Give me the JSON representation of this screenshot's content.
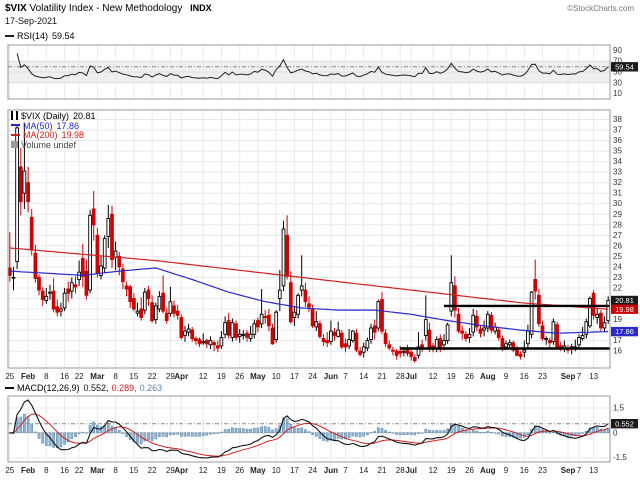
{
  "header": {
    "symbol": "$VIX",
    "title": "Volatility Index - New Methodology",
    "exchange": "INDX",
    "date": "17-Sep-2021",
    "copyright": "©StockCharts.com"
  },
  "rsi_panel": {
    "label": "RSI(14)",
    "value": "59.54",
    "value_num": 59.54,
    "ticks": [
      90,
      70,
      50,
      30,
      10
    ],
    "band": [
      30,
      70
    ],
    "range": [
      0,
      100
    ]
  },
  "main_panel": {
    "legend_symbol": "$VIX (Daily)",
    "last_value": "20.81",
    "ma50_label": "MA(50)",
    "ma50_value": "17.86",
    "ma200_label": "MA(200)",
    "ma200_value": "19.98",
    "volume_label": "Volume undef",
    "price_ticks": [
      16,
      17,
      18,
      19,
      20,
      21,
      22,
      23,
      24,
      25,
      26,
      27,
      28,
      29,
      30,
      31,
      32,
      33,
      34,
      35,
      36,
      37,
      38
    ],
    "badges": [
      {
        "text": "20.81",
        "value": 20.81,
        "color": "#1a1a1a"
      },
      {
        "text": "19.98",
        "value": 19.98,
        "color": "#cc0000"
      },
      {
        "text": "17.86",
        "value": 17.86,
        "color": "#2929cc"
      }
    ]
  },
  "macd_panel": {
    "label": "MACD(12,26,9)",
    "values": [
      "0.552,",
      "0.289,",
      "0.263"
    ],
    "value_num": 0.552,
    "ticks": [
      1.5,
      0,
      -1.5
    ]
  },
  "colors": {
    "up": "#000000",
    "down": "#cc0000",
    "ma50": "#2929cc",
    "ma200": "#cc2222",
    "rsi_line": "#222222",
    "macd_line": "#111111",
    "macd_signal": "#cc2222",
    "macd_hist_fill": "#8fb4d2",
    "macd_hist_stroke": "#5b86a8",
    "grid": "#e9e9e9",
    "panel_border": "#999999",
    "band": "#efefef",
    "dash": "#888888",
    "axis_text": "#333333"
  },
  "chart_data": {
    "type": "candlestick",
    "title": "$VIX Volatility Index - New Methodology (Daily)",
    "date_of_data": "17-Sep-2021",
    "y_range": [
      14.4,
      38.9
    ],
    "x_ticks": [
      [
        0,
        "25"
      ],
      [
        5,
        "Feb"
      ],
      [
        10,
        "8"
      ],
      [
        15,
        "16"
      ],
      [
        19,
        "22"
      ],
      [
        24,
        "Mar"
      ],
      [
        29,
        "8"
      ],
      [
        34,
        "15"
      ],
      [
        39,
        "22"
      ],
      [
        44,
        "29"
      ],
      [
        47,
        "Apr"
      ],
      [
        53,
        "12"
      ],
      [
        58,
        "19"
      ],
      [
        63,
        "26"
      ],
      [
        68,
        "May"
      ],
      [
        73,
        "10"
      ],
      [
        78,
        "17"
      ],
      [
        83,
        "24"
      ],
      [
        88,
        "Jun"
      ],
      [
        92,
        "7"
      ],
      [
        97,
        "14"
      ],
      [
        102,
        "21"
      ],
      [
        107,
        "28"
      ],
      [
        110,
        "Jul"
      ],
      [
        116,
        "12"
      ],
      [
        121,
        "19"
      ],
      [
        126,
        "26"
      ],
      [
        131,
        "Aug"
      ],
      [
        136,
        "9"
      ],
      [
        141,
        "16"
      ],
      [
        146,
        "23"
      ],
      [
        153,
        "Sep"
      ],
      [
        156,
        "7"
      ],
      [
        160,
        "13"
      ]
    ],
    "ohlc": [
      [
        23.9,
        27.3,
        22.6,
        23.2
      ],
      [
        23.0,
        24.0,
        21.8,
        23.0
      ],
      [
        24.5,
        37.5,
        23.8,
        37.2
      ],
      [
        33.5,
        35.3,
        28.9,
        30.2
      ],
      [
        31.0,
        37.6,
        29.5,
        33.1
      ],
      [
        32.0,
        33.5,
        29.2,
        30.2
      ],
      [
        28.7,
        29.5,
        25.1,
        25.6
      ],
      [
        25.3,
        26.1,
        22.5,
        22.9
      ],
      [
        23.0,
        23.3,
        21.3,
        21.8
      ],
      [
        21.7,
        22.1,
        20.3,
        20.9
      ],
      [
        20.8,
        22.0,
        20.5,
        21.2
      ],
      [
        21.5,
        22.3,
        20.9,
        21.6
      ],
      [
        21.7,
        22.9,
        19.7,
        20.0
      ],
      [
        20.2,
        20.9,
        19.3,
        19.7
      ],
      [
        19.8,
        20.6,
        19.3,
        20.0
      ],
      [
        20.1,
        22.0,
        19.8,
        21.5
      ],
      [
        21.9,
        22.6,
        20.7,
        21.5
      ],
      [
        21.7,
        23.0,
        21.0,
        22.5
      ],
      [
        22.3,
        23.1,
        21.5,
        22.1
      ],
      [
        22.8,
        24.6,
        22.2,
        23.5
      ],
      [
        24.8,
        26.2,
        22.1,
        23.1
      ],
      [
        23.6,
        24.7,
        20.9,
        21.3
      ],
      [
        21.8,
        29.4,
        21.5,
        28.9
      ],
      [
        29.5,
        31.2,
        26.5,
        28.0
      ],
      [
        27.0,
        27.7,
        23.0,
        23.4
      ],
      [
        23.2,
        25.0,
        22.8,
        24.1
      ],
      [
        23.9,
        27.0,
        23.4,
        26.7
      ],
      [
        26.9,
        29.9,
        25.8,
        28.6
      ],
      [
        29.0,
        29.8,
        23.9,
        24.7
      ],
      [
        24.9,
        26.4,
        23.7,
        25.5
      ],
      [
        25.0,
        25.4,
        23.2,
        24.0
      ],
      [
        23.8,
        24.3,
        21.9,
        22.6
      ],
      [
        22.2,
        22.6,
        21.2,
        21.9
      ],
      [
        22.1,
        22.3,
        20.1,
        20.7
      ],
      [
        21.0,
        21.5,
        19.8,
        20.0
      ],
      [
        19.6,
        20.6,
        19.3,
        19.8
      ],
      [
        20.0,
        21.1,
        18.9,
        19.2
      ],
      [
        19.9,
        22.0,
        19.5,
        21.6
      ],
      [
        21.8,
        22.2,
        20.3,
        21.0
      ],
      [
        20.6,
        21.3,
        18.7,
        18.9
      ],
      [
        19.0,
        20.6,
        18.6,
        20.3
      ],
      [
        20.0,
        21.7,
        19.7,
        21.2
      ],
      [
        21.5,
        23.2,
        19.6,
        19.8
      ],
      [
        19.6,
        20.1,
        18.6,
        18.9
      ],
      [
        19.6,
        22.1,
        19.3,
        20.7
      ],
      [
        20.3,
        20.8,
        19.2,
        19.6
      ],
      [
        19.8,
        20.4,
        19.0,
        19.4
      ],
      [
        19.2,
        19.5,
        17.1,
        17.3
      ],
      [
        17.5,
        18.4,
        16.9,
        17.9
      ],
      [
        17.8,
        18.6,
        17.4,
        18.1
      ],
      [
        18.0,
        18.3,
        16.9,
        17.2
      ],
      [
        17.2,
        17.4,
        16.6,
        17.0
      ],
      [
        17.1,
        17.3,
        16.4,
        16.7
      ],
      [
        16.8,
        17.7,
        16.6,
        16.9
      ],
      [
        17.0,
        17.2,
        16.3,
        16.7
      ],
      [
        16.6,
        17.4,
        16.2,
        17.0
      ],
      [
        16.8,
        17.0,
        16.0,
        16.6
      ],
      [
        16.5,
        17.0,
        15.9,
        16.3
      ],
      [
        16.5,
        17.9,
        16.2,
        17.3
      ],
      [
        17.6,
        19.3,
        17.2,
        18.7
      ],
      [
        18.9,
        19.6,
        17.2,
        17.5
      ],
      [
        17.3,
        19.1,
        16.9,
        18.7
      ],
      [
        18.6,
        18.9,
        17.0,
        17.3
      ],
      [
        17.4,
        18.1,
        16.8,
        17.6
      ],
      [
        17.5,
        18.0,
        17.1,
        17.6
      ],
      [
        17.7,
        18.0,
        16.9,
        17.3
      ],
      [
        17.2,
        18.4,
        16.9,
        17.6
      ],
      [
        17.6,
        19.0,
        17.2,
        18.6
      ],
      [
        18.9,
        19.2,
        17.8,
        18.3
      ],
      [
        18.6,
        21.9,
        18.2,
        19.5
      ],
      [
        19.3,
        19.9,
        18.6,
        19.2
      ],
      [
        19.4,
        20.0,
        17.9,
        18.4
      ],
      [
        18.2,
        18.6,
        16.6,
        16.7
      ],
      [
        17.1,
        19.9,
        16.8,
        19.7
      ],
      [
        21.0,
        23.7,
        19.8,
        21.8
      ],
      [
        22.2,
        28.4,
        21.7,
        27.6
      ],
      [
        27.0,
        28.9,
        22.8,
        23.1
      ],
      [
        22.5,
        23.6,
        18.6,
        18.8
      ],
      [
        19.2,
        20.3,
        18.4,
        19.7
      ],
      [
        19.5,
        21.5,
        19.1,
        21.3
      ],
      [
        21.8,
        25.1,
        21.2,
        22.2
      ],
      [
        21.8,
        22.5,
        20.2,
        20.7
      ],
      [
        20.5,
        21.2,
        19.7,
        20.2
      ],
      [
        20.0,
        20.4,
        18.2,
        18.4
      ],
      [
        18.3,
        19.8,
        17.9,
        18.8
      ],
      [
        18.6,
        18.9,
        17.2,
        17.4
      ],
      [
        17.2,
        17.6,
        16.5,
        16.9
      ],
      [
        17.0,
        17.8,
        16.4,
        16.8
      ],
      [
        16.9,
        18.9,
        16.6,
        17.9
      ],
      [
        17.8,
        18.2,
        17.0,
        17.5
      ],
      [
        17.4,
        18.8,
        17.3,
        18.0
      ],
      [
        17.7,
        18.0,
        16.2,
        16.4
      ],
      [
        16.7,
        17.2,
        15.9,
        16.4
      ],
      [
        16.5,
        18.1,
        16.2,
        17.1
      ],
      [
        17.0,
        18.0,
        16.8,
        17.9
      ],
      [
        17.7,
        18.1,
        15.9,
        16.1
      ],
      [
        16.0,
        16.4,
        15.5,
        15.7
      ],
      [
        15.9,
        16.8,
        15.4,
        16.4
      ],
      [
        16.3,
        17.3,
        16.0,
        17.0
      ],
      [
        17.1,
        18.6,
        16.7,
        18.2
      ],
      [
        18.4,
        19.0,
        17.1,
        17.8
      ],
      [
        18.2,
        20.9,
        17.9,
        20.7
      ],
      [
        20.9,
        21.6,
        17.6,
        17.9
      ],
      [
        17.7,
        18.1,
        16.4,
        16.7
      ],
      [
        16.6,
        17.0,
        16.1,
        16.3
      ],
      [
        16.1,
        16.4,
        15.6,
        16.0
      ],
      [
        16.0,
        16.2,
        15.2,
        15.6
      ],
      [
        16.0,
        16.5,
        15.4,
        15.8
      ],
      [
        15.9,
        16.4,
        15.5,
        16.0
      ],
      [
        16.1,
        16.6,
        15.5,
        15.8
      ],
      [
        15.9,
        16.1,
        15.1,
        15.5
      ],
      [
        15.4,
        15.7,
        14.9,
        15.1
      ],
      [
        15.6,
        17.8,
        15.3,
        16.4
      ],
      [
        16.6,
        17.1,
        15.9,
        16.3
      ],
      [
        17.5,
        21.3,
        17.0,
        19.0
      ],
      [
        18.0,
        18.7,
        15.9,
        16.2
      ],
      [
        16.5,
        16.8,
        15.9,
        16.2
      ],
      [
        16.2,
        17.4,
        15.9,
        17.1
      ],
      [
        17.2,
        17.6,
        15.9,
        16.3
      ],
      [
        16.6,
        17.6,
        16.1,
        17.0
      ],
      [
        17.0,
        18.7,
        16.7,
        18.5
      ],
      [
        19.8,
        25.1,
        19.3,
        22.5
      ],
      [
        22.2,
        23.1,
        19.2,
        19.9
      ],
      [
        19.5,
        20.1,
        17.7,
        17.9
      ],
      [
        17.9,
        18.4,
        17.1,
        17.7
      ],
      [
        17.6,
        17.9,
        16.9,
        17.2
      ],
      [
        17.3,
        18.2,
        16.8,
        17.6
      ],
      [
        17.8,
        20.0,
        17.4,
        19.4
      ],
      [
        19.3,
        19.9,
        17.9,
        18.3
      ],
      [
        18.1,
        18.4,
        17.3,
        17.7
      ],
      [
        18.0,
        18.9,
        17.4,
        18.2
      ],
      [
        18.2,
        19.8,
        17.8,
        19.5
      ],
      [
        19.4,
        19.7,
        17.7,
        18.0
      ],
      [
        17.9,
        18.7,
        17.6,
        18.3
      ],
      [
        18.0,
        18.3,
        17.0,
        17.3
      ],
      [
        17.2,
        17.5,
        16.0,
        16.2
      ],
      [
        16.4,
        17.0,
        16.1,
        16.7
      ],
      [
        16.6,
        17.1,
        16.2,
        16.8
      ],
      [
        16.8,
        17.0,
        15.9,
        16.1
      ],
      [
        16.2,
        16.5,
        15.5,
        15.6
      ],
      [
        15.7,
        16.0,
        15.2,
        15.5
      ],
      [
        15.9,
        17.0,
        15.4,
        16.1
      ],
      [
        16.7,
        18.5,
        16.3,
        17.9
      ],
      [
        17.6,
        21.7,
        17.2,
        21.6
      ],
      [
        22.8,
        24.7,
        20.9,
        21.7
      ],
      [
        21.3,
        21.9,
        18.3,
        18.6
      ],
      [
        18.4,
        18.9,
        17.0,
        17.2
      ],
      [
        17.1,
        17.4,
        16.6,
        17.2
      ],
      [
        17.0,
        17.3,
        16.3,
        16.8
      ],
      [
        16.9,
        19.1,
        16.6,
        18.8
      ],
      [
        18.5,
        18.8,
        16.2,
        16.4
      ],
      [
        16.5,
        16.9,
        16.0,
        16.2
      ],
      [
        16.2,
        17.0,
        15.9,
        16.5
      ],
      [
        16.3,
        16.6,
        15.8,
        16.1
      ],
      [
        16.2,
        16.7,
        15.7,
        16.4
      ],
      [
        16.2,
        17.1,
        16.0,
        16.4
      ],
      [
        16.6,
        17.6,
        16.2,
        17.3
      ],
      [
        17.2,
        18.3,
        17.0,
        17.5
      ],
      [
        17.6,
        19.1,
        17.2,
        18.8
      ],
      [
        18.4,
        21.2,
        18.2,
        21.0
      ],
      [
        21.5,
        21.8,
        19.0,
        19.4
      ],
      [
        19.2,
        20.0,
        18.6,
        19.5
      ],
      [
        19.6,
        19.9,
        17.9,
        18.2
      ],
      [
        18.2,
        19.3,
        17.8,
        18.7
      ],
      [
        18.9,
        21.2,
        18.6,
        20.8
      ]
    ],
    "ma50": {
      "x": [
        0,
        10,
        20,
        30,
        40,
        50,
        60,
        70,
        80,
        90,
        100,
        110,
        120,
        130,
        140,
        150,
        164
      ],
      "v": [
        23.6,
        23.4,
        23.2,
        23.6,
        23.9,
        22.8,
        21.6,
        20.7,
        20.1,
        19.9,
        19.9,
        19.5,
        18.9,
        18.4,
        18.0,
        17.7,
        17.86
      ]
    },
    "ma200": {
      "x": [
        0,
        20,
        40,
        60,
        80,
        100,
        120,
        140,
        164
      ],
      "v": [
        25.8,
        25.2,
        24.6,
        23.8,
        23.0,
        22.2,
        21.4,
        20.6,
        19.98
      ]
    },
    "annotations": [
      {
        "type": "hline",
        "price": 20.3,
        "from": 119,
        "to": 167
      },
      {
        "type": "hline",
        "price": 16.25,
        "from": 107,
        "to": 167
      }
    ],
    "indicators": {
      "rsi": {
        "period": 14,
        "last": 59.54
      },
      "macd": {
        "params": [
          12,
          26,
          9
        ],
        "macd": 0.552,
        "signal": 0.289,
        "hist": 0.263
      }
    }
  }
}
